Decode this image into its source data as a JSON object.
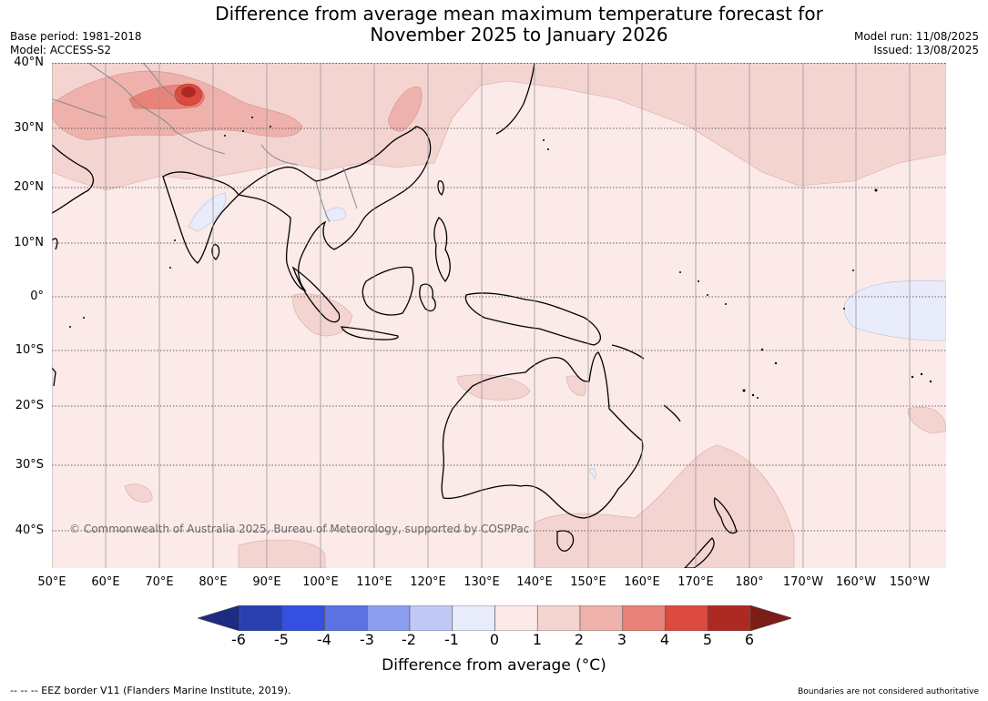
{
  "header": {
    "title_line1": "Difference from average mean maximum temperature forecast for",
    "title_line2": "November 2025 to January 2026",
    "base_period": "Base period: 1981-2018",
    "model": "Model: ACCESS-S2",
    "model_run": "Model run: 11/08/2025",
    "issued": "Issued: 13/08/2025"
  },
  "map": {
    "lat_labels": [
      "40°N",
      "30°N",
      "20°N",
      "10°N",
      "0°",
      "10°S",
      "20°S",
      "30°S",
      "40°S"
    ],
    "lon_labels": [
      "50°E",
      "60°E",
      "70°E",
      "80°E",
      "90°E",
      "100°E",
      "110°E",
      "120°E",
      "130°E",
      "140°E",
      "150°E",
      "160°E",
      "170°E",
      "180°",
      "170°W",
      "160°W",
      "150°W"
    ],
    "copyright": "© Commonwealth of Australia 2025, Bureau of Meteorology, supported by COSPPac",
    "colors": {
      "background": "#fbeae8",
      "warm_1_2": "#f4d4d1",
      "warm_2_3": "#eeb1ac",
      "warm_3_4": "#e8837a",
      "warm_4_5": "#db4a3e",
      "warm_5_6": "#ad2a22",
      "cool_0": "#e8ecfa"
    }
  },
  "colorbar": {
    "ticks": [
      "-6",
      "-5",
      "-4",
      "-3",
      "-2",
      "-1",
      "0",
      "1",
      "2",
      "3",
      "4",
      "5",
      "6"
    ],
    "colors": [
      "#1d2c82",
      "#2a3faf",
      "#3350e0",
      "#5d72e2",
      "#8b9ded",
      "#c0c9f5",
      "#e8ecfa",
      "#fbeae8",
      "#f4d4d1",
      "#eeb1ac",
      "#e8837a",
      "#db4a3e",
      "#ad2a22",
      "#7c1d18"
    ],
    "title": "Difference from average (°C)"
  },
  "footer": {
    "eez": "--  --  -- EEZ border V11 (Flanders Marine Institute, 2019).",
    "boundaries": "Boundaries are not considered authoritative"
  }
}
